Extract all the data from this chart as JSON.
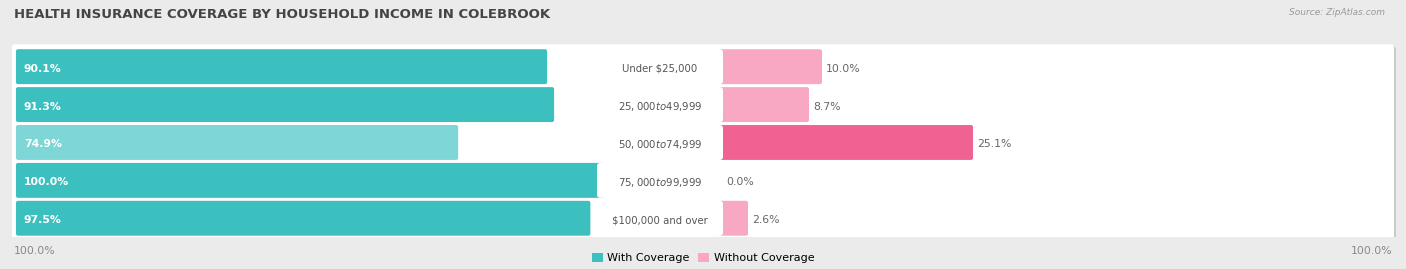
{
  "title": "HEALTH INSURANCE COVERAGE BY HOUSEHOLD INCOME IN COLEBROOK",
  "source": "Source: ZipAtlas.com",
  "categories": [
    "Under $25,000",
    "$25,000 to $49,999",
    "$50,000 to $74,999",
    "$75,000 to $99,999",
    "$100,000 and over"
  ],
  "with_coverage": [
    90.1,
    91.3,
    74.9,
    100.0,
    97.5
  ],
  "without_coverage": [
    10.0,
    8.7,
    25.1,
    0.0,
    2.6
  ],
  "color_with": "#3BBFBF",
  "color_with_light": "#7ED6D6",
  "color_without": "#F06292",
  "color_without_light": "#F9A8C4",
  "bg_color": "#ebebeb",
  "row_bg": "#ffffff",
  "row_shadow": "#d8d8d8",
  "title_fontsize": 9.5,
  "label_fontsize": 7.8,
  "legend_fontsize": 8,
  "bottom_label": "100.0%"
}
